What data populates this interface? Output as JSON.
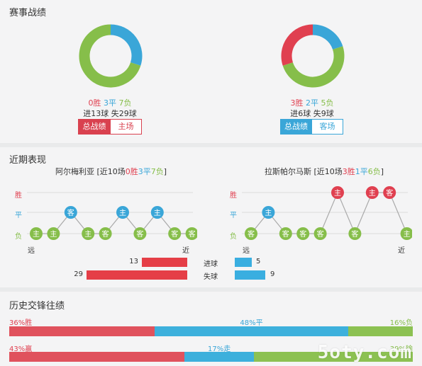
{
  "colors": {
    "win": "#e04050",
    "draw": "#3aa6d8",
    "loss": "#86be4a"
  },
  "record": {
    "title": "赛事战绩",
    "left": {
      "wins": "0胜",
      "draws": "3平",
      "losses": "7负",
      "goals": "进13球 失29球",
      "share": {
        "win": 0,
        "draw": 3,
        "loss": 7
      },
      "tab_active": "总战绩",
      "tab_other": "主场"
    },
    "right": {
      "wins": "3胜",
      "draws": "2平",
      "losses": "5负",
      "goals": "进6球 失9球",
      "share": {
        "win": 3,
        "draw": 2,
        "loss": 5
      },
      "tab_active": "总战绩",
      "tab_other": "客场"
    }
  },
  "recent": {
    "title": "近期表现",
    "axis": {
      "win": "胜",
      "draw": "平",
      "loss": "负",
      "far": "远",
      "near": "近"
    },
    "left": {
      "team": "阿尔梅利亚",
      "summary_pre": " [近10场",
      "w": "0胜",
      "d": "3平",
      "l": "7负",
      "summary_post": "]",
      "results": [
        "L",
        "L",
        "D",
        "L",
        "L",
        "D",
        "L",
        "D",
        "L",
        "L"
      ],
      "labels": [
        "主",
        "主",
        "客",
        "主",
        "客",
        "主",
        "客",
        "主",
        "客",
        "客"
      ]
    },
    "right": {
      "team": "拉斯帕尔马斯",
      "summary_pre": " [近10场",
      "w": "3胜",
      "d": "1平",
      "l": "6负",
      "summary_post": "]",
      "results": [
        "L",
        "D",
        "L",
        "L",
        "L",
        "W",
        "L",
        "W",
        "W",
        "L"
      ],
      "labels": [
        "客",
        "主",
        "客",
        "客",
        "客",
        "主",
        "客",
        "主",
        "客",
        "主"
      ]
    },
    "goals_for": {
      "label": "进球",
      "left": 13,
      "right": 5
    },
    "goals_against": {
      "label": "失球",
      "left": 29,
      "right": 9
    }
  },
  "h2h": {
    "title": "历史交锋往绩",
    "row1": {
      "a": "36%胜",
      "b": "48%平",
      "c": "16%负",
      "pa": 36,
      "pb": 48,
      "pc": 16
    },
    "row2": {
      "a": "43%赢",
      "b": "17%走",
      "c": "39%输",
      "pa": 43,
      "pb": 17,
      "pc": 39
    }
  },
  "watermark": "5oty.com"
}
